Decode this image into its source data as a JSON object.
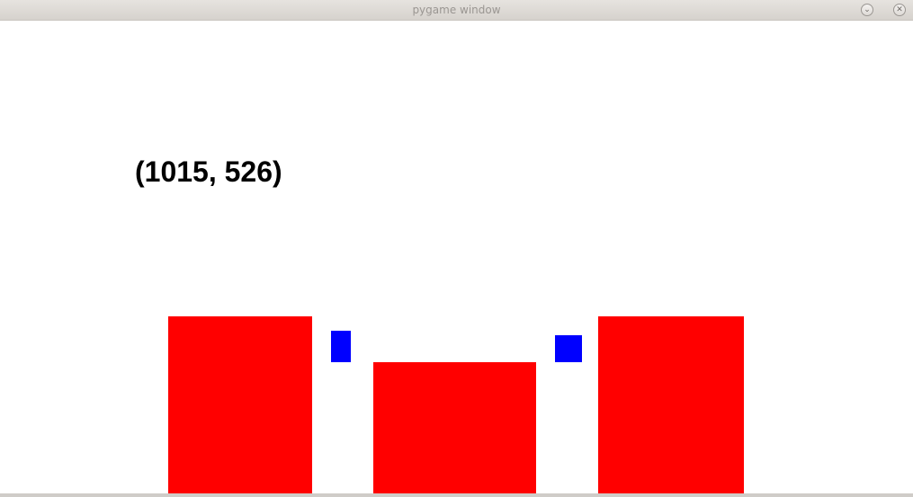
{
  "window": {
    "title": "pygame window",
    "minimize_glyph": "⌄",
    "close_glyph": "✕",
    "minimize_icon": "chevron-down-icon",
    "close_icon": "close-icon"
  },
  "scene": {
    "size_readout": "(1015, 526)",
    "colors": {
      "background": "#ffffff",
      "obstacle": "#ff0000",
      "player": "#0000ff",
      "text": "#000000"
    }
  }
}
